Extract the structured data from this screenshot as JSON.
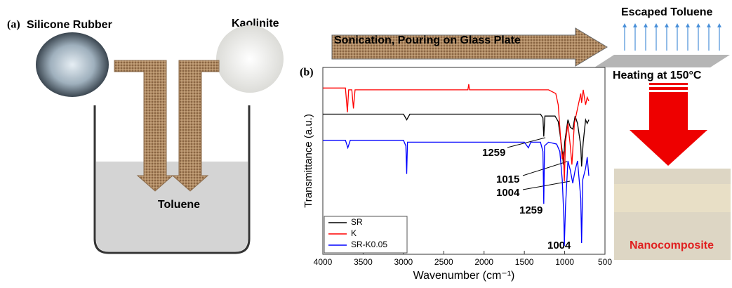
{
  "figure": {
    "panel_a": "(a)",
    "silicone_rubber": "Silicone Rubber",
    "kaolinite": "Kaolinite",
    "toluene": "Toluene",
    "process": "Sonication, Pouring on Glass Plate",
    "escaped": "Escaped Toluene",
    "heating": "Heating at 150°C",
    "nanocomposite": "Nanocomposite",
    "panel_b": "(b)"
  },
  "chart_data": {
    "type": "line",
    "xlabel": "Wavenumber (cm⁻¹)",
    "ylabel": "Transmittance (a.u.)",
    "xlim": [
      4000,
      500
    ],
    "xticks": [
      4000,
      3500,
      3000,
      2500,
      2000,
      1500,
      1000,
      500
    ],
    "ylim": [
      0,
      100
    ],
    "legend": "lower left",
    "series": [
      {
        "name": "SR",
        "color": "#000000",
        "x": [
          4000,
          3000,
          2960,
          2920,
          1300,
          1270,
          1259,
          1245,
          1120,
          1080,
          1050,
          1030,
          1015,
          1000,
          960,
          930,
          900,
          870,
          840,
          800,
          790,
          770,
          740,
          720,
          700
        ],
        "values": [
          75,
          75,
          72,
          75,
          75,
          73,
          63,
          74,
          74,
          71,
          62,
          55,
          48,
          60,
          72,
          68,
          67,
          74,
          70,
          58,
          47,
          60,
          72,
          70,
          72
        ]
      },
      {
        "name": "K",
        "color": "#ff0000",
        "x": [
          4000,
          3720,
          3695,
          3680,
          3640,
          3620,
          3600,
          3000,
          2200,
          2190,
          2180,
          1200,
          1110,
          1080,
          1050,
          1030,
          1015,
          1004,
          990,
          960,
          930,
          910,
          880,
          840,
          800,
          790,
          770,
          740,
          720,
          700
        ],
        "values": [
          89,
          89,
          76,
          88,
          88,
          78,
          88,
          88,
          88,
          91,
          88,
          88,
          86,
          80,
          62,
          51,
          55,
          39,
          60,
          70,
          58,
          48,
          70,
          78,
          86,
          81,
          88,
          80,
          84,
          82
        ]
      },
      {
        "name": "SR-K0.05",
        "color": "#0000ff",
        "x": [
          4000,
          3720,
          3690,
          3660,
          3000,
          2970,
          2960,
          2950,
          1500,
          1450,
          1420,
          1300,
          1270,
          1259,
          1250,
          1200,
          1100,
          1060,
          1030,
          1010,
          1004,
          990,
          960,
          930,
          900,
          870,
          840,
          800,
          790,
          775,
          740,
          720,
          700
        ],
        "values": [
          61,
          61,
          57,
          61,
          61,
          58,
          43,
          60,
          60,
          57,
          60,
          60,
          55,
          27,
          58,
          60,
          59,
          55,
          40,
          20,
          4.5,
          25,
          50,
          45,
          38,
          45,
          50,
          30,
          6,
          40,
          46,
          52,
          42
        ]
      }
    ],
    "annotations": [
      "1259",
      "1015",
      "1004",
      "1259",
      "1004"
    ]
  }
}
